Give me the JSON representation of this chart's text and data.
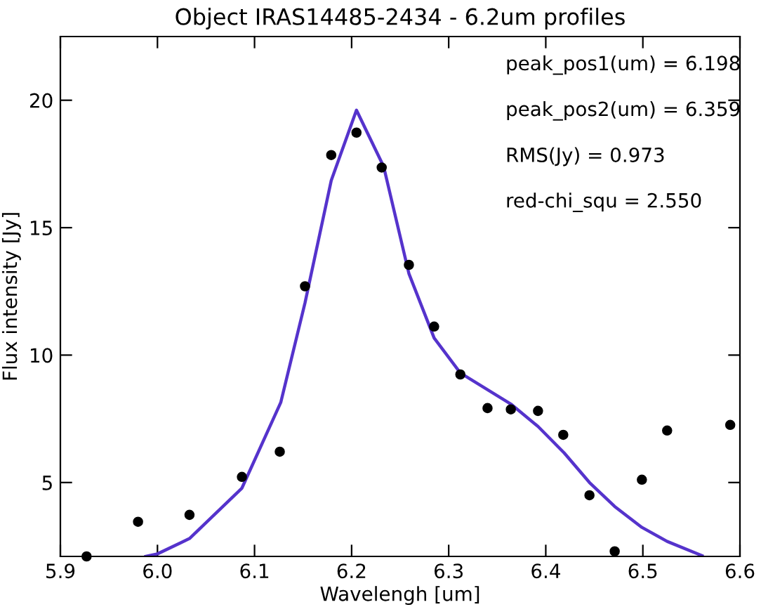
{
  "chart_data": {
    "type": "scatter",
    "title": "Object IRAS14485-2434 - 6.2um profiles",
    "xlabel": "Wavelengh [um]",
    "ylabel": "Flux intensity [Jy]",
    "xlim": [
      5.9,
      6.6
    ],
    "ylim": [
      2.1,
      22.5
    ],
    "xticks": [
      5.9,
      {
        "value": 6.0,
        "label": "6.0"
      },
      6.1,
      6.2,
      6.3,
      6.4,
      6.5,
      6.6
    ],
    "yticks": [
      5,
      10,
      15,
      20
    ],
    "grid": false,
    "legend": false,
    "annotations": [
      "peak_pos1(um) = 6.198",
      "peak_pos2(um) = 6.359",
      "RMS(Jy) = 0.973",
      "red-chi_squ = 2.550"
    ],
    "series": [
      {
        "color": "#000000",
        "marker": "circle",
        "x": [
          5.927,
          5.98,
          6.033,
          6.087,
          6.126,
          6.152,
          6.179,
          6.205,
          6.231,
          6.259,
          6.285,
          6.312,
          6.34,
          6.364,
          6.392,
          6.418,
          6.445,
          6.471,
          6.499,
          6.525,
          6.59
        ],
        "values": [
          2.1,
          3.46,
          3.73,
          5.22,
          6.21,
          12.7,
          17.85,
          18.73,
          17.36,
          13.54,
          11.12,
          9.24,
          7.92,
          7.87,
          7.81,
          6.87,
          4.5,
          2.3,
          5.11,
          7.04,
          7.26
        ]
      },
      {
        "type": "line",
        "color": "#5533cc",
        "marker": "none",
        "line_style": "solid",
        "x": [
          5.988,
          6.0,
          6.033,
          6.087,
          6.127,
          6.152,
          6.179,
          6.205,
          6.233,
          6.259,
          6.285,
          6.312,
          6.364,
          6.392,
          6.419,
          6.445,
          6.471,
          6.499,
          6.525,
          6.561
        ],
        "values": [
          2.1,
          2.2,
          2.8,
          4.78,
          8.14,
          12.05,
          16.85,
          19.61,
          17.4,
          13.2,
          10.67,
          9.3,
          8.08,
          7.2,
          6.16,
          5.0,
          4.06,
          3.24,
          2.69,
          2.13
        ]
      }
    ]
  }
}
